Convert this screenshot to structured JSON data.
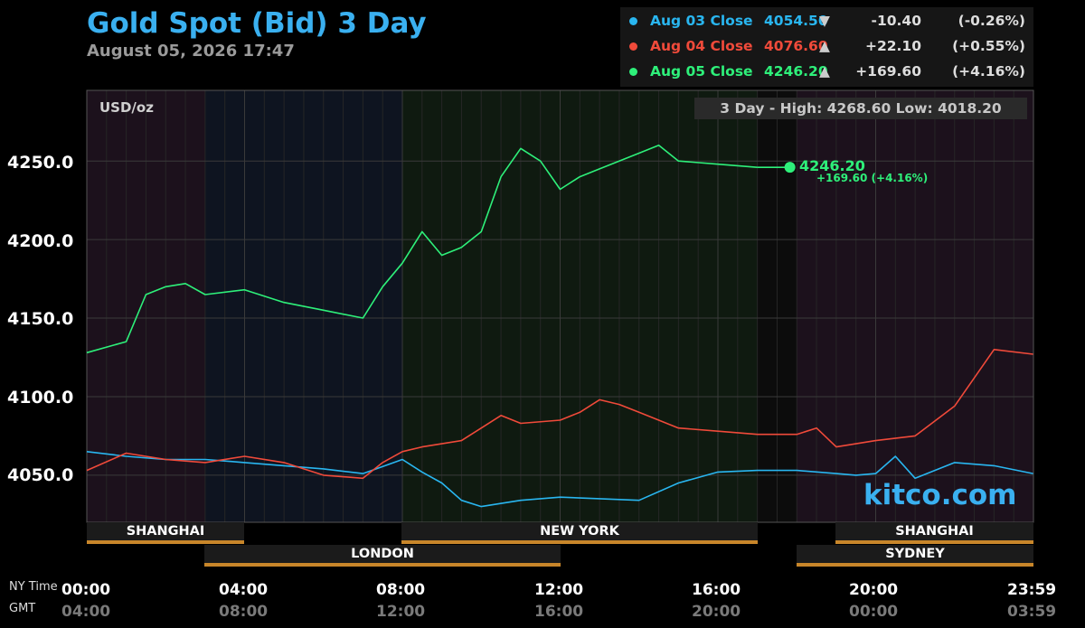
{
  "title": "Gold Spot (Bid) 3 Day",
  "subtitle": "August 05, 2026 17:47",
  "legend": [
    {
      "name": "Aug 03 Close",
      "value": "4054.50",
      "arrow": "▼",
      "change": "-10.40",
      "pct": "(-0.26%)",
      "color": "#29b6f0"
    },
    {
      "name": "Aug 04 Close",
      "value": "4076.60",
      "arrow": "▲",
      "change": "+22.10",
      "pct": "(+0.55%)",
      "color": "#f04a3a"
    },
    {
      "name": "Aug 05 Close",
      "value": "4246.20",
      "arrow": "▲",
      "change": "+169.60",
      "pct": "(+4.16%)",
      "color": "#2ef07a"
    }
  ],
  "hi_lo": "3 Day - High: 4268.60  Low: 4018.20",
  "unit": "USD/oz",
  "last_value": "4246.20",
  "last_change": "+169.60 (+4.16%)",
  "watermark": "kitco.com",
  "y_labels": [
    "4250.0",
    "4200.0",
    "4150.0",
    "4100.0",
    "4050.0"
  ],
  "markets_top": [
    "SHANGHAI",
    "NEW YORK",
    "SHANGHAI"
  ],
  "markets_bottom": [
    "LONDON",
    "SYDNEY"
  ],
  "tz_labels": [
    "NY Time",
    "GMT"
  ],
  "time_ny": [
    "00:00",
    "04:00",
    "08:00",
    "12:00",
    "16:00",
    "20:00",
    "23:59"
  ],
  "time_gmt": [
    "04:00",
    "08:00",
    "12:00",
    "16:00",
    "20:00",
    "00:00",
    "03:59"
  ],
  "chart_data": {
    "type": "line",
    "title": "Gold Spot (Bid) 3 Day",
    "ylabel": "USD/oz",
    "ylim": [
      4020,
      4295
    ],
    "yticks": [
      4050,
      4100,
      4150,
      4200,
      4250
    ],
    "x_unit": "hours (NY time)",
    "xlim": [
      0,
      24
    ],
    "grid": true,
    "series": [
      {
        "name": "Aug 03 Close",
        "color": "#29b6f0",
        "x": [
          0,
          1,
          2,
          3,
          4,
          5,
          6,
          7,
          8,
          8.5,
          9,
          9.5,
          10,
          11,
          12,
          13,
          14,
          15,
          16,
          17,
          18,
          19,
          19.5,
          20,
          20.5,
          21,
          22,
          23,
          23.99
        ],
        "y": [
          4065,
          4062,
          4060,
          4060,
          4058,
          4056,
          4054,
          4051,
          4060,
          4052,
          4045,
          4034,
          4030,
          4034,
          4036,
          4035,
          4034,
          4045,
          4052,
          4053,
          4053,
          4051,
          4050,
          4051,
          4062,
          4048,
          4058,
          4056,
          4051
        ]
      },
      {
        "name": "Aug 04 Close",
        "color": "#f04a3a",
        "x": [
          0,
          1,
          2,
          3,
          4,
          5,
          6,
          7,
          7.5,
          8,
          8.5,
          9,
          9.5,
          10,
          10.5,
          11,
          12,
          12.5,
          13,
          13.5,
          14,
          15,
          16,
          17,
          18,
          18.5,
          19,
          19.5,
          20,
          21,
          22,
          23,
          23.99
        ],
        "y": [
          4053,
          4064,
          4060,
          4058,
          4062,
          4058,
          4050,
          4048,
          4058,
          4065,
          4068,
          4070,
          4072,
          4080,
          4088,
          4083,
          4085,
          4090,
          4098,
          4095,
          4090,
          4080,
          4078,
          4076,
          4076,
          4080,
          4068,
          4070,
          4072,
          4075,
          4094,
          4130,
          4127
        ]
      },
      {
        "name": "Aug 05 Close",
        "color": "#2ef07a",
        "x": [
          0,
          1,
          1.5,
          2,
          2.5,
          3,
          4,
          5,
          6,
          7,
          7.5,
          8,
          8.5,
          9,
          9.5,
          10,
          10.5,
          11,
          11.5,
          12,
          12.5,
          13,
          14,
          14.5,
          15,
          16,
          17
        ],
        "y": [
          4128,
          4135,
          4165,
          4170,
          4172,
          4165,
          4168,
          4160,
          4155,
          4150,
          4170,
          4185,
          4205,
          4190,
          4195,
          4205,
          4240,
          4258,
          4250,
          4232,
          4240,
          4245,
          4255,
          4260,
          4250,
          4248,
          4246
        ]
      }
    ]
  }
}
